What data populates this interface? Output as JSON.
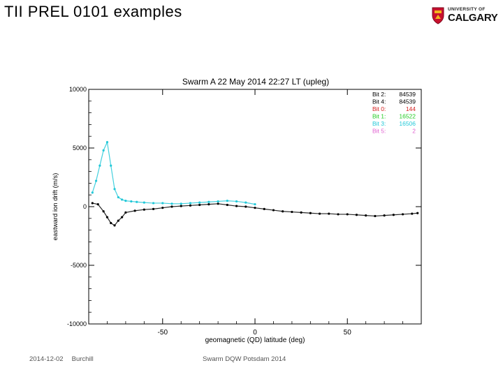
{
  "slide": {
    "title": "TII PREL 0101 examples",
    "logo_line1": "UNIVERSITY OF",
    "logo_line2": "CALGARY",
    "footer_date": "2014-12-02",
    "footer_author": "Burchill",
    "footer_event": "Swarm DQW Potsdam 2014"
  },
  "chart_data": {
    "type": "scatter",
    "title": "Swarm A  22 May 2014  22:27 LT (upleg)",
    "xlabel": "geomagnetic (QD) latitude (deg)",
    "ylabel": "eastward ion drift (m/s)",
    "xlim": [
      -90,
      90
    ],
    "ylim": [
      -10000,
      10000
    ],
    "xticks": [
      -50,
      0,
      50
    ],
    "yticks": [
      10000,
      5000,
      0,
      -5000,
      -10000
    ],
    "xtick_labels": [
      "-50",
      "0",
      "50"
    ],
    "ytick_labels": [
      "10000",
      "5000",
      "0",
      "-5000",
      "-10000"
    ],
    "grid": false,
    "legend": {
      "placement": "top-right",
      "entries": [
        {
          "label": "Bit 2:",
          "value": "84539",
          "color": "#000000"
        },
        {
          "label": "Bit 4:",
          "value": "84539",
          "color": "#000000"
        },
        {
          "label": "Bit 0:",
          "value": "144",
          "color": "#d42020"
        },
        {
          "label": "Bit 1:",
          "value": "16522",
          "color": "#22cc22"
        },
        {
          "label": "Bit 3:",
          "value": "16506",
          "color": "#22c8d8"
        },
        {
          "label": "Bit 5:",
          "value": "2",
          "color": "#e060d0"
        }
      ]
    },
    "series": [
      {
        "color": "#000000",
        "x": [
          -88,
          -85,
          -82,
          -80,
          -78,
          -76,
          -74,
          -72,
          -70,
          -65,
          -60,
          -55,
          -50,
          -45,
          -40,
          -35,
          -30,
          -25,
          -20,
          -15,
          -10,
          -5,
          0,
          5,
          10,
          15,
          20,
          25,
          30,
          35,
          40,
          45,
          50,
          55,
          60,
          65,
          70,
          75,
          80,
          85,
          88
        ],
        "y": [
          300,
          200,
          -400,
          -900,
          -1400,
          -1600,
          -1200,
          -900,
          -500,
          -350,
          -250,
          -200,
          -100,
          0,
          50,
          100,
          150,
          200,
          250,
          150,
          50,
          0,
          -100,
          -200,
          -300,
          -400,
          -450,
          -500,
          -550,
          -600,
          -600,
          -650,
          -650,
          -700,
          -750,
          -800,
          -750,
          -700,
          -650,
          -600,
          -550
        ]
      },
      {
        "color": "#22c8d8",
        "x": [
          -88,
          -86,
          -84,
          -82,
          -80,
          -78,
          -76,
          -74,
          -72,
          -70,
          -67,
          -64,
          -60,
          -55,
          -50,
          -45,
          -40,
          -35,
          -30,
          -25,
          -20,
          -15,
          -10,
          -5,
          0
        ],
        "y": [
          1200,
          2200,
          3500,
          4800,
          5500,
          3500,
          1500,
          800,
          600,
          500,
          450,
          400,
          350,
          300,
          300,
          250,
          250,
          300,
          350,
          400,
          450,
          500,
          450,
          350,
          200
        ]
      }
    ]
  }
}
